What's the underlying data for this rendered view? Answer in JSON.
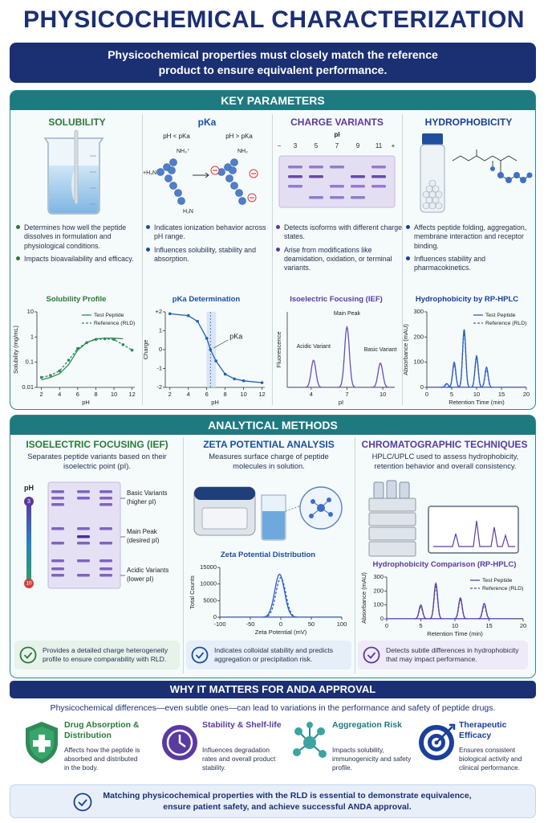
{
  "title": "PHYSICOCHEMICAL CHARACTERIZATION",
  "subtitle": "Physicochemical properties must closely match the reference product to ensure equivalent performance.",
  "key_parameters": {
    "heading": "KEY PARAMETERS",
    "panels": [
      {
        "title": "SOLUBILITY",
        "bullets": [
          "Determines how well the peptide dissolves in formulation and physiological conditions.",
          "Impacts bioavailability and efficacy."
        ],
        "chart": {
          "type": "line",
          "title": "Solubility Profile",
          "x_label": "pH",
          "y_label": "Solubility (mg/mL)",
          "log_y": true,
          "xlim": [
            1.5,
            12.3
          ],
          "ylim": [
            0.01,
            10
          ],
          "xticks": [
            2,
            4,
            6,
            8,
            10,
            12
          ],
          "yticks": [
            0.01,
            0.1,
            1,
            10
          ],
          "legend": "top-right",
          "series": [
            {
              "name": "Test Peptide",
              "color": "#2e8b57",
              "dash": false,
              "markers": false,
              "x": [
                2,
                3,
                4,
                5,
                6,
                7,
                8,
                9,
                10,
                11
              ],
              "values": [
                0.02,
                0.025,
                0.035,
                0.08,
                0.3,
                0.6,
                0.85,
                0.9,
                0.9,
                0.85
              ]
            },
            {
              "name": "Reference (RLD)",
              "color": "#2e8b57",
              "dash": true,
              "markers": true,
              "x": [
                2,
                3,
                4,
                5,
                6,
                7,
                8,
                9,
                10,
                11,
                12
              ],
              "values": [
                0.025,
                0.03,
                0.045,
                0.12,
                0.35,
                0.6,
                0.8,
                0.85,
                0.8,
                0.5,
                0.3
              ]
            }
          ]
        }
      },
      {
        "title": "pKa",
        "diagram_labels": [
          "pH < pKa",
          "pH > pKa",
          "NH₃⁺",
          "+H₃N",
          "H₃N",
          "NH₂"
        ],
        "bullets": [
          "Indicates ionization behavior across pH range.",
          "Influences solubility, stability and absorption."
        ],
        "chart": {
          "type": "line",
          "title": "pKa Determination",
          "x_label": "pH",
          "y_label": "Charge",
          "xlim": [
            1.5,
            12.3
          ],
          "ylim": [
            -2,
            2
          ],
          "xticks": [
            2,
            4,
            6,
            8,
            10,
            12
          ],
          "yticks": [
            {
              "value": 2,
              "label": "+2"
            },
            1,
            0,
            -1,
            -2
          ],
          "annotation": "pKa",
          "pka": 6.4,
          "band": [
            6,
            7
          ],
          "series": [
            {
              "color": "#1f5fb4",
              "dash": false,
              "markers": true,
              "x": [
                2,
                4,
                5,
                6,
                6.4,
                7,
                8,
                9,
                10,
                12
              ],
              "values": [
                1.9,
                1.8,
                1.5,
                0.6,
                0,
                -0.6,
                -1.3,
                -1.55,
                -1.65,
                -1.75
              ]
            }
          ]
        }
      },
      {
        "title": "CHARGE VARIANTS",
        "gel": {
          "axis_label": "pI",
          "minus": "−",
          "plus": "+",
          "lanes": [
            3,
            5,
            7,
            9,
            11
          ]
        },
        "bullets": [
          "Detects isoforms with different charge states.",
          "Arise from modifications like deamidation, oxidation, or terminal variants."
        ],
        "chart": {
          "type": "peaks",
          "title": "Isoelectric Focusing (IEF)",
          "x_label": "pI",
          "y_label": "Fluorescence",
          "xlim": [
            2,
            11
          ],
          "ylim": [
            0,
            1.25
          ],
          "xticks": [
            4,
            7,
            10
          ],
          "series": [
            {
              "color": "#6a4fb0",
              "dash": false,
              "x": [
                4.2,
                7,
                9.8
              ],
              "values": [
                0.45,
                1,
                0.4
              ],
              "labels": [
                "Acidic Variant",
                "Main Peak",
                "Basic Variant"
              ]
            }
          ]
        }
      },
      {
        "title": "HYDROPHOBICITY",
        "bullets": [
          "Affects peptide folding, aggregation, membrane interaction and receptor binding.",
          "Influences stability and pharmacokinetics."
        ],
        "chart": {
          "type": "peaks",
          "title": "Hydrophobicity by RP-HPLC",
          "x_label": "Retention Time (min)",
          "y_label": "Absorbance (mAU)",
          "xlim": [
            0,
            20
          ],
          "ylim": [
            0,
            300
          ],
          "xticks": [
            0,
            5,
            10,
            15,
            20
          ],
          "yticks": [
            0,
            100,
            200,
            300
          ],
          "legend": "top-right",
          "series": [
            {
              "name": "Test Peptide",
              "color": "#2f5fc0",
              "dash": false,
              "x": [
                4,
                5.5,
                7.5,
                10,
                12
              ],
              "values": [
                15,
                100,
                230,
                125,
                80
              ]
            },
            {
              "name": "Reference (RLD)",
              "color": "#2f5fc0",
              "dash": true,
              "x": [
                4,
                5.5,
                7.5,
                10,
                12
              ],
              "values": [
                12,
                90,
                215,
                115,
                70
              ]
            }
          ]
        }
      }
    ]
  },
  "methods": {
    "heading": "ANALYTICAL METHODS",
    "panels": [
      {
        "title": "ISOELECTRIC FOCUSING (IEF)",
        "description": "Separates peptide variants based on their isoelectric point (pI).",
        "gel": {
          "ph_label": "pH",
          "ph_top": 3,
          "ph_bottom": 10,
          "annotations": [
            {
              "label": "Basic Variants",
              "detail": "(higher pI)"
            },
            {
              "label": "Main Peak",
              "detail": "(desired pI)"
            },
            {
              "label": "Acidic Variants",
              "detail": "(lower pI)"
            }
          ]
        },
        "callout": "Provides a detailed charge heterogeneity profile to ensure comparability with RLD."
      },
      {
        "title": "ZETA POTENTIAL ANALYSIS",
        "description": "Measures surface charge of peptide molecules in solution.",
        "chart": {
          "type": "peaks",
          "title": "Zeta Potential Distribution",
          "x_label": "Zeta Potential (mV)",
          "y_label": "Total Counts",
          "xlim": [
            -100,
            100
          ],
          "ylim": [
            0,
            15000
          ],
          "xticks": [
            -100,
            -50,
            0,
            50,
            100
          ],
          "yticks": [
            0,
            5000,
            10000,
            15000
          ],
          "series": [
            {
              "color": "#2f5fc0",
              "dash": false,
              "x": [
                -2
              ],
              "values": [
                13000
              ]
            },
            {
              "color": "#2f5fc0",
              "dash": true,
              "x": [
                0
              ],
              "values": [
                12000
              ]
            }
          ]
        },
        "callout": "Indicates colloidal stability and predicts aggregation or precipitation risk."
      },
      {
        "title": "CHROMATOGRAPHIC TECHNIQUES",
        "description": "HPLC/UPLC used to assess hydrophobicity, retention behavior and overall consistency.",
        "chart": {
          "type": "peaks",
          "title": "Hydrophobicity Comparison (RP-HPLC)",
          "x_label": "Retention Time (min)",
          "y_label": "Absorbance (mAU)",
          "xlim": [
            0,
            20
          ],
          "ylim": [
            0,
            300
          ],
          "xticks": [
            0,
            5,
            10,
            15,
            20
          ],
          "yticks": [
            0,
            100,
            200,
            300
          ],
          "legend": "top-right",
          "series": [
            {
              "name": "Test Peptide",
              "color": "#5a3fa8",
              "dash": false,
              "x": [
                5,
                7.2,
                10.8,
                14.3
              ],
              "values": [
                100,
                255,
                150,
                110
              ]
            },
            {
              "name": "Reference (RLD)",
              "color": "#5a3fa8",
              "dash": true,
              "x": [
                5,
                7.2,
                10.8,
                14.3
              ],
              "values": [
                85,
                230,
                135,
                95
              ]
            }
          ]
        },
        "callout": "Detects subtle differences in hydrophobicity that may impact performance."
      }
    ]
  },
  "why": {
    "heading": "WHY IT MATTERS FOR ANDA APPROVAL",
    "intro": "Physicochemical differences—even subtle ones—can lead to variations in the performance and safety of peptide drugs.",
    "items": [
      {
        "title": "Drug Absorption & Distribution",
        "text": "Affects how the peptide is absorbed and distributed in the body."
      },
      {
        "title": "Stability & Shelf-life",
        "text": "Influences degradation rates and overall product stability."
      },
      {
        "title": "Aggregation Risk",
        "text": "Impacts solubility, immunogenicity and safety profile."
      },
      {
        "title": "Therapeutic Efficacy",
        "text": "Ensures consistent biological activity and clinical performance."
      }
    ]
  },
  "conclusion": "Matching physicochemical properties with the RLD is essential to demonstrate equivalence, ensure patient safety, and achieve successful ANDA approval."
}
